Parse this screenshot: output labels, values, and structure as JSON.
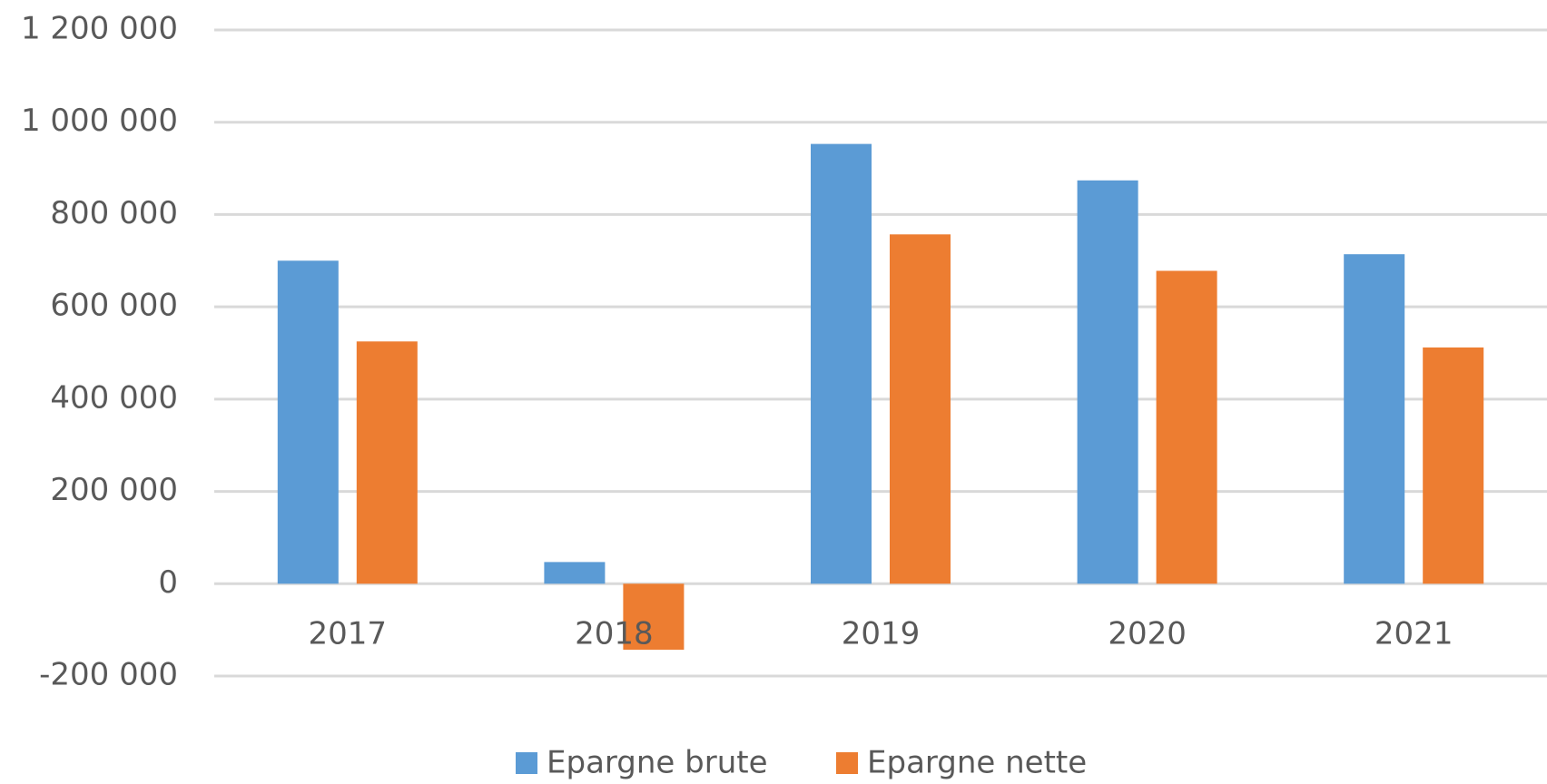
{
  "chart_data": {
    "type": "bar",
    "categories": [
      "2017",
      "2018",
      "2019",
      "2020",
      "2021"
    ],
    "series": [
      {
        "name": "Epargne brute",
        "color": "#5b9bd5",
        "values": [
          700000,
          47000,
          953000,
          874000,
          714000
        ]
      },
      {
        "name": "Epargne nette",
        "color": "#ed7d31",
        "values": [
          525000,
          -143000,
          757000,
          678000,
          512000
        ]
      }
    ],
    "ylim": [
      -200000,
      1200000
    ],
    "yticks": [
      {
        "value": -200000,
        "label": "-200 000"
      },
      0,
      {
        "value": 200000,
        "label": "200 000"
      },
      {
        "value": 400000,
        "label": "400 000"
      },
      {
        "value": 600000,
        "label": "600 000"
      },
      {
        "value": 800000,
        "label": "800 000"
      },
      {
        "value": 1000000,
        "label": "1 000 000"
      },
      {
        "value": 1200000,
        "label": "1 200 000"
      }
    ],
    "grid": true,
    "legend": "bottom"
  }
}
